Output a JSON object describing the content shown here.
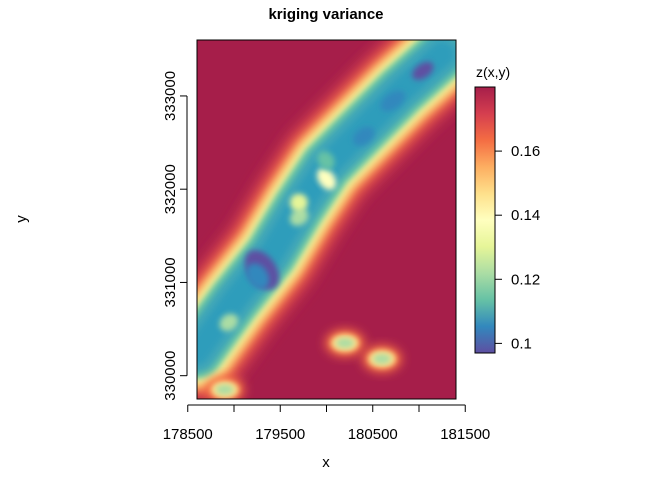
{
  "chart_data": {
    "type": "heatmap",
    "title": "kriging variance",
    "xlabel": "x",
    "ylabel": "y",
    "xlim": [
      178600,
      181400
    ],
    "ylim": [
      329750,
      333600
    ],
    "x_ticks": [
      178500,
      179000,
      179500,
      180000,
      180500,
      181000,
      181500
    ],
    "x_tick_labels": [
      "178500",
      "179500",
      "180500",
      "181500"
    ],
    "y_ticks": [
      330000,
      331000,
      332000,
      333000
    ],
    "y_tick_labels": [
      "330000",
      "331000",
      "332000",
      "333000"
    ],
    "legend": {
      "title": "z(x,y)",
      "placement": "right",
      "range": [
        0.097,
        0.18
      ],
      "ticks": [
        0.1,
        0.12,
        0.14,
        0.16
      ],
      "tick_labels": [
        "0.1",
        "0.12",
        "0.14",
        "0.16"
      ]
    },
    "background_value": 0.18,
    "low_variance_corridor": [
      {
        "x": 178600,
        "y": 330250
      },
      {
        "x": 179000,
        "y": 330800
      },
      {
        "x": 179400,
        "y": 331300
      },
      {
        "x": 179700,
        "y": 331800
      },
      {
        "x": 180000,
        "y": 332250
      },
      {
        "x": 180400,
        "y": 332650
      },
      {
        "x": 180800,
        "y": 333050
      },
      {
        "x": 181250,
        "y": 333450
      }
    ],
    "low_variance_spots": [
      {
        "x": 180200,
        "y": 330350,
        "z": 0.14
      },
      {
        "x": 180600,
        "y": 330180,
        "z": 0.14
      },
      {
        "x": 178900,
        "y": 329850,
        "z": 0.14
      }
    ],
    "colormap": [
      "#5E4FA2",
      "#3288BD",
      "#66C2A5",
      "#ABDDA4",
      "#E6F598",
      "#FFFFBF",
      "#FEE08B",
      "#FDAE61",
      "#F46D43",
      "#D53E4F",
      "#A61E4A"
    ]
  }
}
